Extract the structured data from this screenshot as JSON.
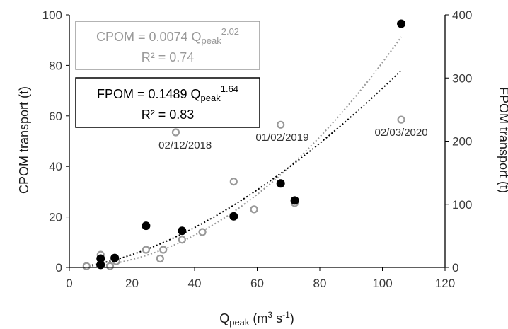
{
  "chart_data": {
    "type": "scatter",
    "xlabel": "Q",
    "xlabel_sub": "peak",
    "xlabel_unit_pre": " (m",
    "xlabel_unit_sup": "3",
    "xlabel_unit_mid": " s",
    "xlabel_unit_sup2": "-1",
    "xlabel_unit_post": ")",
    "ylabel_left": "CPOM transport (t)",
    "ylabel_right": "FPOM transport (t)",
    "xlim": [
      0,
      120
    ],
    "ylim_left": [
      0,
      100
    ],
    "ylim_right": [
      0,
      400
    ],
    "x_ticks": [
      "0",
      "20",
      "40",
      "60",
      "80",
      "100",
      "120"
    ],
    "y_left_ticks": [
      "0",
      "20",
      "40",
      "60",
      "80",
      "100"
    ],
    "y_right_ticks": [
      "0",
      "100",
      "200",
      "300",
      "400"
    ],
    "grid": false,
    "colors": {
      "cpom": "#999999",
      "fpom": "#000000"
    },
    "series": [
      {
        "key": "cpom",
        "axis": "left",
        "marker": "open-circle",
        "points": [
          [
            5.5,
            0.5
          ],
          [
            10,
            5
          ],
          [
            10,
            3.5
          ],
          [
            13,
            0.5
          ],
          [
            15,
            2.5
          ],
          [
            24.5,
            7
          ],
          [
            29,
            3.5
          ],
          [
            30,
            7
          ],
          [
            36,
            11
          ],
          [
            42.5,
            14
          ],
          [
            52.5,
            34
          ],
          [
            59,
            23
          ],
          [
            34,
            53.5
          ],
          [
            67.5,
            56.5
          ],
          [
            72,
            25.5
          ],
          [
            106,
            58.5
          ]
        ],
        "equation": {
          "lhs": "CPOM = 0.0074 Q",
          "sub": "peak",
          "sup": "2.02",
          "r2": "R² = 0.74"
        },
        "fit": {
          "a": 0.0074,
          "b": 2.02
        }
      },
      {
        "key": "fpom",
        "axis": "right",
        "marker": "filled-circle",
        "points": [
          [
            10,
            14
          ],
          [
            10,
            4
          ],
          [
            14.5,
            15
          ],
          [
            24.5,
            66
          ],
          [
            36,
            58
          ],
          [
            52.5,
            81
          ],
          [
            67.5,
            133
          ],
          [
            72,
            106
          ],
          [
            106,
            386
          ]
        ],
        "equation": {
          "lhs": "FPOM = 0.1489 Q",
          "sub": "peak",
          "sup": "1.64",
          "r2": "R² = 0.83"
        },
        "fit": {
          "a": 0.1489,
          "b": 1.64
        }
      }
    ],
    "annotations": [
      {
        "text": "02/12/2018",
        "x": 37,
        "y": 48.5
      },
      {
        "text": "01/02/2019",
        "x": 68,
        "y": 51.5
      },
      {
        "text": "02/03/2020",
        "x": 106,
        "y": 53.5
      }
    ]
  }
}
